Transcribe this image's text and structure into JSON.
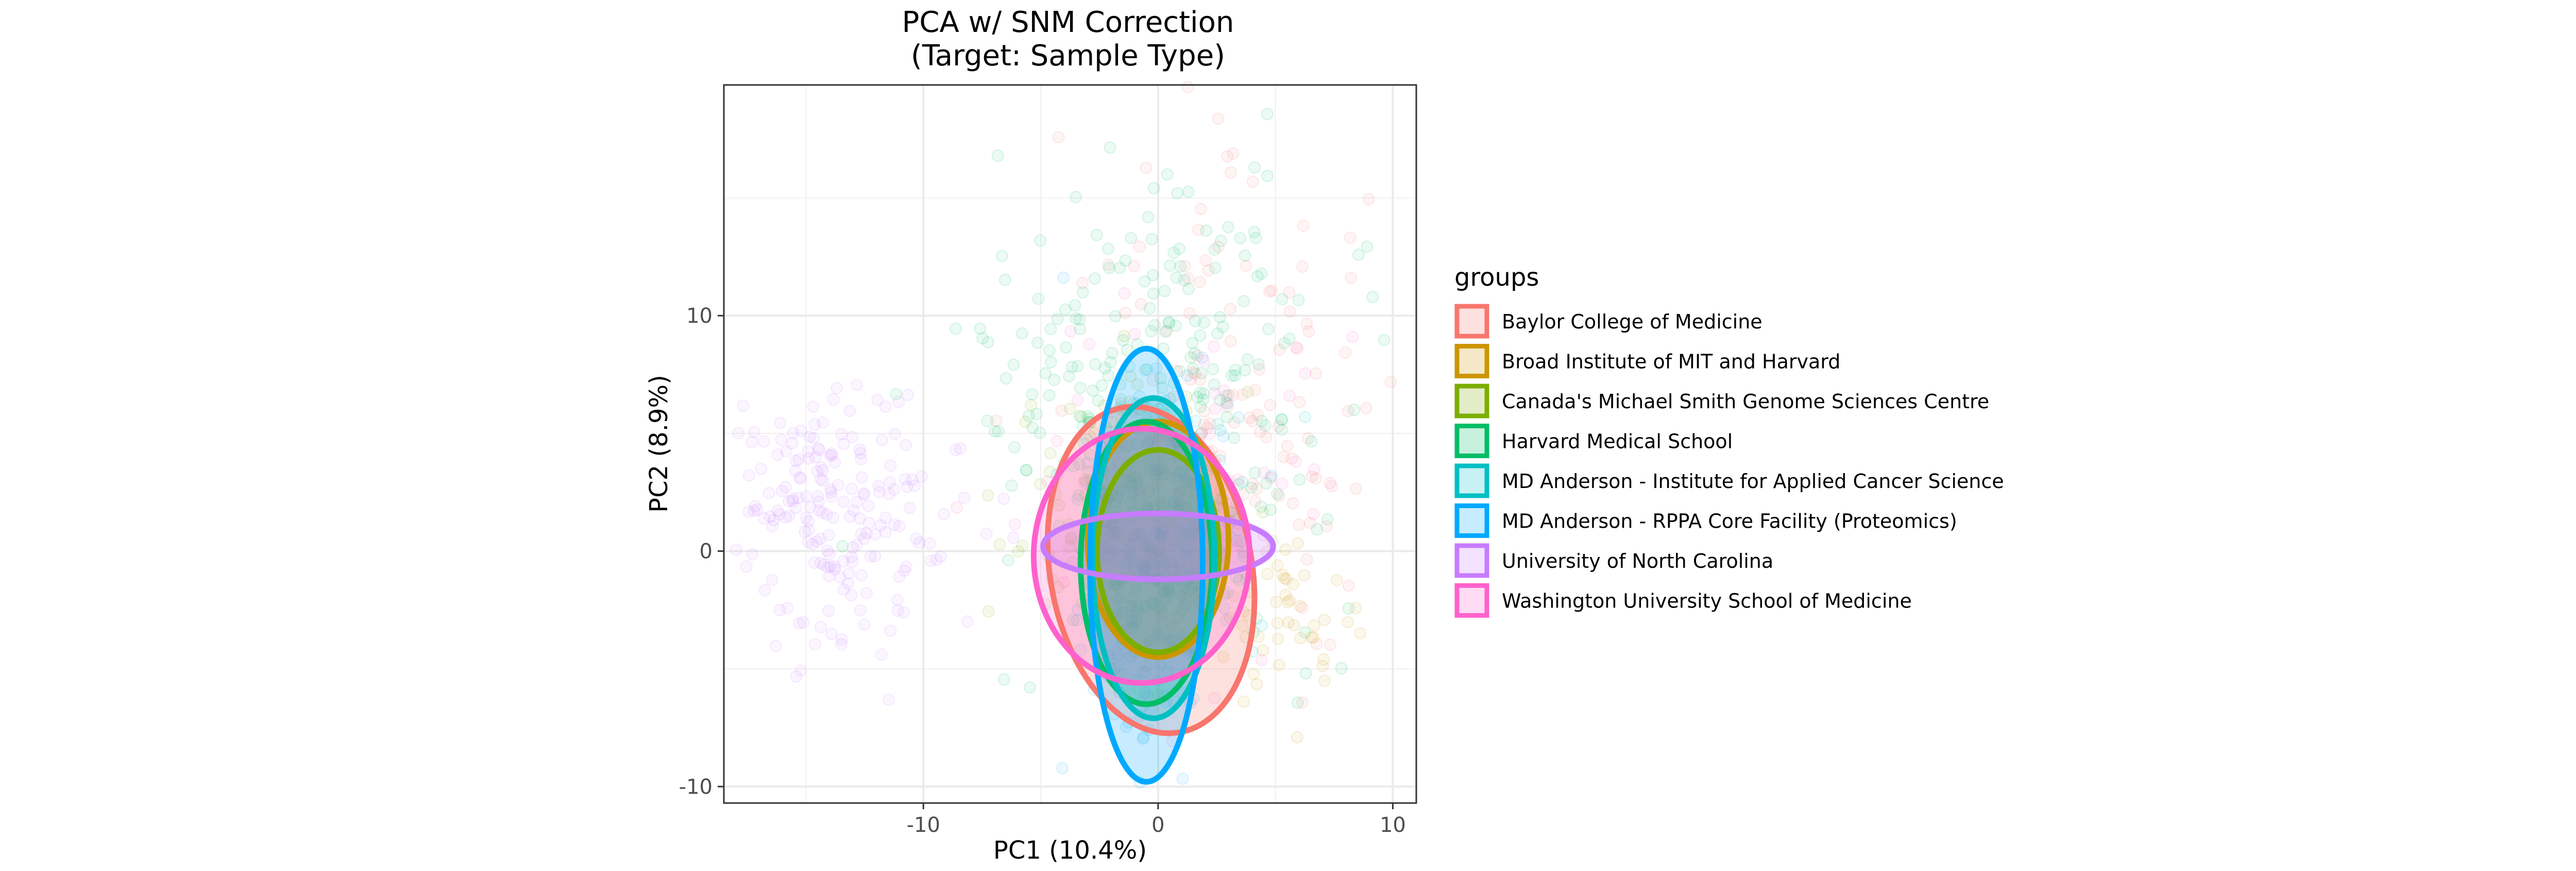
{
  "chart_data": {
    "type": "scatter",
    "title": "PCA w/ SNM Correction",
    "subtitle": "(Target: Sample Type)",
    "xlabel": "PC1 (10.4%)",
    "ylabel": "PC2 (8.9%)",
    "xlim": [
      -18.5,
      11.0
    ],
    "ylim": [
      -10.7,
      19.8
    ],
    "xticks": [
      -10,
      0,
      10
    ],
    "yticks": [
      -10,
      0,
      10
    ],
    "xtick_labels": [
      "-10",
      "0",
      "10"
    ],
    "ytick_labels": [
      "-10",
      "0",
      "10"
    ],
    "grid": true,
    "legend": {
      "title": "groups",
      "position": "right"
    },
    "series": [
      {
        "name": "Baylor College of Medicine",
        "color": "#F8766D",
        "ellipse": {
          "cx": -0.3,
          "cy": -0.8,
          "rx": 4.3,
          "ry": 7.0,
          "angle": 10
        },
        "cloud": {
          "cx": 3.5,
          "cy": 6.0,
          "sx": 3.0,
          "sy": 5.0,
          "n": 130
        }
      },
      {
        "name": "Broad Institute of MIT and Harvard",
        "color": "#CD9600",
        "ellipse": {
          "cx": 0.0,
          "cy": 0.5,
          "rx": 3.0,
          "ry": 5.0,
          "angle": 0
        },
        "cloud": {
          "cx": 5.0,
          "cy": -2.5,
          "sx": 1.5,
          "sy": 1.5,
          "n": 50
        }
      },
      {
        "name": "Canada's Michael Smith Genome Sciences Centre",
        "color": "#7CAE00",
        "ellipse": {
          "cx": 0.0,
          "cy": 0.0,
          "rx": 2.6,
          "ry": 4.3,
          "angle": 0
        },
        "cloud": {
          "cx": -1.0,
          "cy": 1.0,
          "sx": 2.5,
          "sy": 3.0,
          "n": 120
        }
      },
      {
        "name": "Harvard Medical School",
        "color": "#00BE67",
        "ellipse": {
          "cx": -0.5,
          "cy": -0.5,
          "rx": 2.8,
          "ry": 6.0,
          "angle": 0
        },
        "cloud": {
          "cx": 0.0,
          "cy": 6.5,
          "sx": 4.0,
          "sy": 5.0,
          "n": 260
        }
      },
      {
        "name": "MD Anderson - Institute for Applied Cancer Science",
        "color": "#00BFC4",
        "ellipse": {
          "cx": -0.2,
          "cy": -0.3,
          "rx": 2.6,
          "ry": 6.8,
          "angle": 0
        },
        "cloud": {
          "cx": 0.0,
          "cy": 0.0,
          "sx": 2.0,
          "sy": 3.0,
          "n": 120
        }
      },
      {
        "name": "MD Anderson - RPPA Core Facility (Proteomics)",
        "color": "#00A9FF",
        "ellipse": {
          "cx": -0.5,
          "cy": -0.6,
          "rx": 2.4,
          "ry": 9.2,
          "angle": 0
        },
        "cloud": {
          "cx": -0.5,
          "cy": -0.5,
          "sx": 1.8,
          "sy": 4.5,
          "n": 120
        }
      },
      {
        "name": "University of North Carolina",
        "color": "#C77CFF",
        "ellipse": {
          "cx": 0.0,
          "cy": 0.2,
          "rx": 4.9,
          "ry": 1.4,
          "angle": 0
        },
        "cloud": {
          "cx": -13.5,
          "cy": 1.5,
          "sx": 2.5,
          "sy": 2.5,
          "n": 200
        }
      },
      {
        "name": "Washington University School of Medicine",
        "color": "#FF61CC",
        "ellipse": {
          "cx": -0.7,
          "cy": -0.2,
          "rx": 4.6,
          "ry": 5.4,
          "angle": 0
        },
        "cloud": {
          "cx": 1.0,
          "cy": 3.5,
          "sx": 3.5,
          "sy": 4.0,
          "n": 60
        }
      }
    ]
  }
}
